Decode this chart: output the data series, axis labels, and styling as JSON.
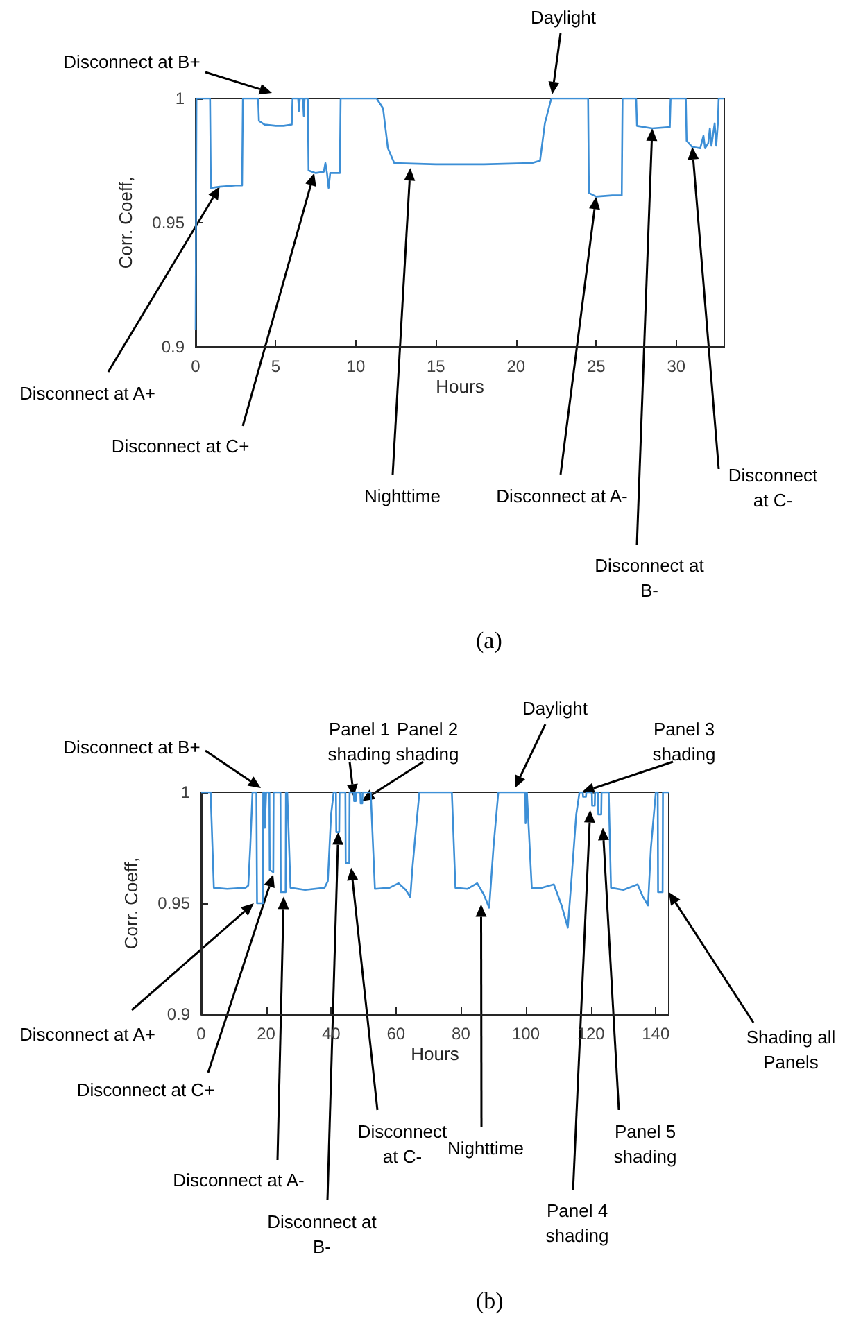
{
  "chart_data": [
    {
      "type": "line",
      "title": "(a)",
      "xlabel": "Hours",
      "ylabel": "Corr. Coeff,",
      "xlim": [
        0,
        33
      ],
      "xticks": [
        0,
        5,
        10,
        15,
        20,
        25,
        30
      ],
      "ylim": [
        0.9,
        1
      ],
      "yticks": [
        0.9,
        0.95,
        1
      ],
      "color": "#3d8fd6",
      "x": [
        0,
        0.05,
        0.9,
        0.95,
        1.5,
        2.5,
        2.9,
        2.95,
        3.9,
        3.95,
        4.3,
        5,
        5.5,
        6,
        6.05,
        6.4,
        6.45,
        6.5,
        6.7,
        6.75,
        6.8,
        7,
        7.05,
        7.5,
        8,
        8.1,
        8.2,
        8.3,
        8.4,
        9,
        9.05,
        11.3,
        11.7,
        12,
        12.4,
        15,
        18,
        21,
        21.5,
        21.8,
        22.2,
        24.5,
        24.55,
        25,
        26,
        26.6,
        26.65,
        27.5,
        27.55,
        28.5,
        29.6,
        29.65,
        30.6,
        30.65,
        31,
        31.5,
        31.7,
        31.8,
        32,
        32.1,
        32.2,
        32.4,
        32.5,
        32.6,
        32.65,
        33
      ],
      "values": [
        0.907,
        1,
        1,
        0.964,
        0.9645,
        0.965,
        0.965,
        1,
        1,
        0.991,
        0.9895,
        0.989,
        0.989,
        0.9895,
        1,
        1,
        0.995,
        1,
        1,
        0.993,
        1,
        1,
        0.971,
        0.97,
        0.9705,
        0.974,
        0.97,
        0.964,
        0.97,
        0.97,
        1,
        1,
        0.996,
        0.98,
        0.974,
        0.9735,
        0.9735,
        0.974,
        0.975,
        0.99,
        1,
        1,
        0.962,
        0.9605,
        0.961,
        0.961,
        1,
        1,
        0.989,
        0.988,
        0.9885,
        1,
        1,
        0.983,
        0.9805,
        0.98,
        0.985,
        0.98,
        0.982,
        0.988,
        0.981,
        0.99,
        0.981,
        0.99,
        1,
        1
      ],
      "annotations": [
        "Disconnect at B+",
        "Daylight",
        {
          "text": "Disconnect at A+",
          "x": 1.5,
          "y": 0.9645
        },
        {
          "text": "Disconnect at C+",
          "x": 7.4,
          "y": 0.97
        },
        {
          "text": "Nighttime",
          "x": 13.4,
          "y": 0.972
        },
        {
          "text": "Disconnect at A-",
          "x": 25,
          "y": 0.9605
        },
        {
          "text": "Disconnect at B-",
          "x": 28.5,
          "y": 0.988
        },
        {
          "text": "Disconnect at C-",
          "x": 31,
          "y": 0.9805
        }
      ]
    },
    {
      "type": "line",
      "title": "(b)",
      "xlabel": "Hours",
      "ylabel": "Corr. Coeff,",
      "xlim": [
        0,
        144
      ],
      "xticks": [
        0,
        20,
        40,
        60,
        80,
        100,
        120,
        140
      ],
      "ylim": [
        0.9,
        1
      ],
      "yticks": [
        0.9,
        0.95,
        1
      ],
      "color": "#3d8fd6",
      "x": [
        0,
        2.9,
        3.9,
        8,
        13.7,
        14.5,
        15.1,
        15.8,
        17,
        17.2,
        19,
        19.1,
        19.5,
        19.6,
        19.9,
        20,
        21,
        21.1,
        22.2,
        22.3,
        24.4,
        24.5,
        26,
        26.1,
        26.5,
        27.5,
        32,
        38,
        39,
        40,
        40.8,
        41.5,
        41.6,
        42.5,
        42.6,
        44.4,
        44.5,
        45.6,
        45.7,
        47,
        47.1,
        47.6,
        47.7,
        49,
        49.1,
        49.6,
        49.7,
        52.2,
        53.5,
        58,
        60.8,
        63,
        64.4,
        65,
        65.8,
        67.2,
        77.2,
        78.3,
        82,
        85,
        87,
        88.7,
        90,
        91.5,
        99.8,
        99.9,
        100.2,
        100.3,
        100.6,
        101.8,
        105,
        108.6,
        111,
        112.9,
        114,
        115.5,
        116.5,
        117.5,
        117.6,
        118.5,
        118.6,
        120.3,
        120.4,
        121.2,
        121.3,
        122.2,
        122.3,
        123.2,
        123.3,
        125.5,
        126.2,
        130,
        134.4,
        136,
        137.6,
        138.5,
        140,
        140.6,
        140.7,
        142.1,
        142.2,
        144
      ],
      "values": [
        1,
        1,
        0.957,
        0.9565,
        0.957,
        0.958,
        0.975,
        1,
        1,
        0.95,
        0.95,
        1,
        1,
        0.984,
        0.984,
        1,
        1,
        0.965,
        0.964,
        1,
        1,
        0.955,
        0.955,
        1,
        1,
        0.957,
        0.956,
        0.957,
        0.96,
        0.99,
        1,
        1,
        0.982,
        0.982,
        1,
        1,
        0.968,
        0.968,
        1,
        1,
        0.996,
        0.996,
        1,
        1,
        0.995,
        0.995,
        1,
        1,
        0.9565,
        0.957,
        0.959,
        0.956,
        0.9527,
        0.965,
        0.978,
        1,
        1,
        0.957,
        0.9565,
        0.959,
        0.954,
        0.948,
        0.975,
        1,
        1,
        0.986,
        0.986,
        1,
        1,
        0.957,
        0.957,
        0.9585,
        0.949,
        0.939,
        0.96,
        0.99,
        1,
        1,
        0.998,
        0.998,
        1,
        1,
        0.994,
        0.994,
        1,
        1,
        0.99,
        0.99,
        1,
        1,
        0.957,
        0.956,
        0.9585,
        0.953,
        0.949,
        0.975,
        1,
        1,
        0.955,
        0.955,
        1,
        1
      ],
      "annotations": [
        "Disconnect at B+",
        {
          "text": "Panel 1 shading",
          "x": 47,
          "y": 0.998
        },
        {
          "text": "Panel 2 shading",
          "x": 49.5,
          "y": 0.996
        },
        "Daylight",
        {
          "text": "Panel 3 shading",
          "x": 117.2,
          "y": 1
        },
        {
          "text": "Disconnect at A+",
          "x": 16.2,
          "y": 0.95
        },
        {
          "text": "Disconnect at C+",
          "x": 22.2,
          "y": 0.963
        },
        {
          "text": "Disconnect at A-",
          "x": 25.4,
          "y": 0.953
        },
        {
          "text": "Disconnect at B-",
          "x": 42.2,
          "y": 0.982
        },
        {
          "text": "Disconnect at C-",
          "x": 46.2,
          "y": 0.966
        },
        {
          "text": "Nighttime",
          "x": 86.2,
          "y": 0.9495
        },
        {
          "text": "Panel 4 shading",
          "x": 119.8,
          "y": 0.992
        },
        {
          "text": "Panel 5 shading",
          "x": 123.7,
          "y": 0.984
        },
        {
          "text": "Shading all Panels",
          "x": 144,
          "y": 0.955
        }
      ]
    }
  ]
}
